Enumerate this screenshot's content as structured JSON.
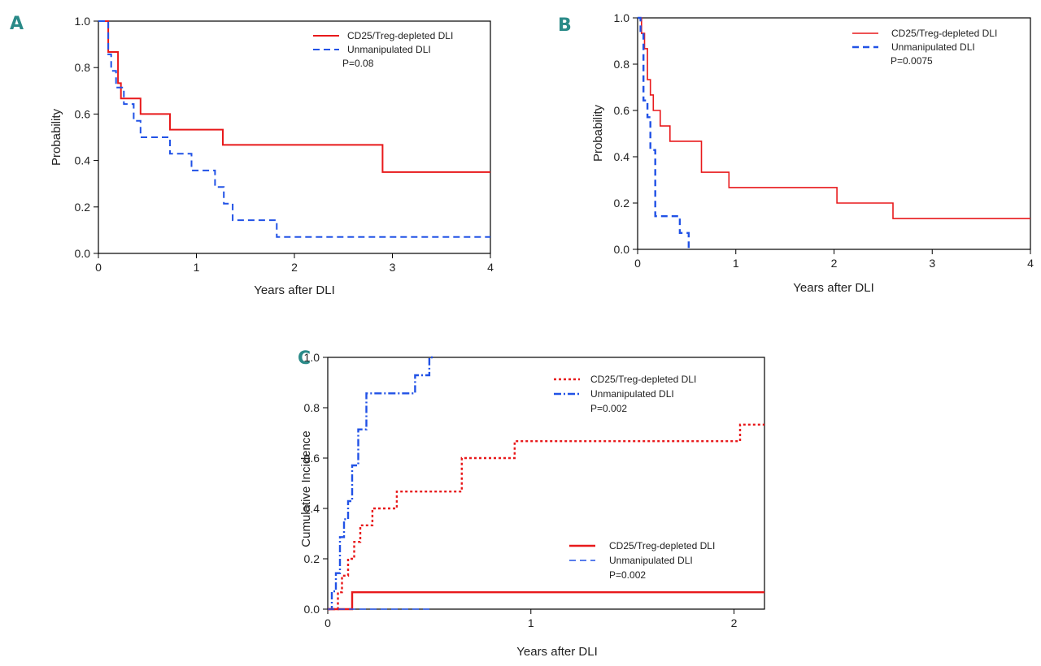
{
  "chart_data": [
    {
      "panel": "A",
      "type": "line",
      "title": "",
      "xlabel": "Years after DLI",
      "ylabel": "Probability",
      "xlim": [
        0,
        4
      ],
      "ylim": [
        0,
        1
      ],
      "xticks": [
        "0",
        "1",
        "2",
        "3",
        "4"
      ],
      "yticks": [
        "0.0",
        "0.2",
        "0.4",
        "0.6",
        "0.8",
        "1.0"
      ],
      "legend_position": "top-right",
      "p_value": "P=0.08",
      "series": [
        {
          "name": "CD25/Treg-depleted DLI",
          "color": "#e8191b",
          "style": "solid",
          "width": 2,
          "x": [
            0,
            0.1,
            0.2,
            0.23,
            0.43,
            0.73,
            1.27,
            2.9,
            4.0
          ],
          "y": [
            1.0,
            0.867,
            0.733,
            0.667,
            0.6,
            0.533,
            0.467,
            0.35,
            0.35
          ]
        },
        {
          "name": "Unmanipulated DLI",
          "color": "#2152e6",
          "style": "dashed",
          "width": 2,
          "x": [
            0,
            0.1,
            0.13,
            0.18,
            0.26,
            0.36,
            0.43,
            0.73,
            0.95,
            1.19,
            1.28,
            1.37,
            1.82,
            4.0
          ],
          "y": [
            1.0,
            0.857,
            0.786,
            0.714,
            0.643,
            0.571,
            0.5,
            0.429,
            0.357,
            0.286,
            0.214,
            0.143,
            0.071,
            0.071
          ]
        }
      ]
    },
    {
      "panel": "B",
      "type": "line",
      "title": "",
      "xlabel": "Years after DLI",
      "ylabel": "Probability",
      "xlim": [
        0,
        4
      ],
      "ylim": [
        0,
        1
      ],
      "xticks": [
        "0",
        "1",
        "2",
        "3",
        "4"
      ],
      "yticks": [
        "0.0",
        "0.2",
        "0.4",
        "0.6",
        "0.8",
        "1.0"
      ],
      "legend_position": "top-right",
      "p_value": "P=0.0075",
      "series": [
        {
          "name": "CD25/Treg-depleted DLI",
          "color": "#e8191b",
          "style": "solid",
          "width": 1.6,
          "x": [
            0,
            0.04,
            0.07,
            0.1,
            0.13,
            0.16,
            0.23,
            0.33,
            0.65,
            0.93,
            2.03,
            2.6,
            4.0
          ],
          "y": [
            1.0,
            0.933,
            0.867,
            0.733,
            0.667,
            0.6,
            0.533,
            0.467,
            0.333,
            0.267,
            0.2,
            0.133,
            0.133
          ]
        },
        {
          "name": "Unmanipulated DLI",
          "color": "#2152e6",
          "style": "dashed",
          "width": 2.4,
          "x": [
            0,
            0.03,
            0.06,
            0.1,
            0.13,
            0.18,
            0.43,
            0.52
          ],
          "y": [
            1.0,
            0.929,
            0.643,
            0.571,
            0.429,
            0.143,
            0.071,
            0.0
          ]
        }
      ]
    },
    {
      "panel": "C",
      "type": "line",
      "title": "",
      "xlabel": "Years after DLI",
      "ylabel": "Cumulative Incidence",
      "xlim": [
        0,
        2.15
      ],
      "ylim": [
        0,
        1
      ],
      "xticks": [
        "0",
        "1",
        "2"
      ],
      "yticks": [
        "0.0",
        "0.2",
        "0.4",
        "0.6",
        "0.8",
        "1.0"
      ],
      "legends": [
        {
          "position": "top-center",
          "entries": [
            "CD25/Treg-depleted DLI",
            "Unmanipulated DLI"
          ],
          "styles": [
            "dotted",
            "dashdot"
          ],
          "p_value": "P=0.002"
        },
        {
          "position": "bottom-right",
          "entries": [
            "CD25/Treg-depleted DLI",
            "Unmanipulated DLI"
          ],
          "styles": [
            "solid",
            "dashed"
          ],
          "p_value": "P=0.002"
        }
      ],
      "series": [
        {
          "name": "CD25/Treg-depleted DLI",
          "color": "#e8191b",
          "style": "dotted",
          "width": 2.4,
          "x": [
            0,
            0.05,
            0.07,
            0.1,
            0.13,
            0.16,
            0.22,
            0.34,
            0.66,
            0.92,
            2.03,
            2.15
          ],
          "y": [
            0,
            0.067,
            0.133,
            0.2,
            0.267,
            0.333,
            0.4,
            0.467,
            0.6,
            0.667,
            0.733,
            0.733
          ]
        },
        {
          "name": "Unmanipulated DLI",
          "color": "#2152e6",
          "style": "dashdot",
          "width": 2.4,
          "x": [
            0,
            0.02,
            0.04,
            0.06,
            0.08,
            0.1,
            0.12,
            0.15,
            0.19,
            0.43,
            0.5,
            0.52
          ],
          "y": [
            0,
            0.071,
            0.143,
            0.286,
            0.357,
            0.429,
            0.571,
            0.714,
            0.857,
            0.929,
            1.0,
            1.0
          ]
        },
        {
          "name": "CD25/Treg-depleted DLI",
          "color": "#e8191b",
          "style": "solid",
          "width": 2.4,
          "x": [
            0,
            0.12,
            2.15
          ],
          "y": [
            0,
            0.067,
            0.067
          ]
        },
        {
          "name": "Unmanipulated DLI",
          "color": "#2152e6",
          "style": "dashed",
          "width": 1.6,
          "x": [
            0,
            0.52
          ],
          "y": [
            0,
            0
          ]
        }
      ]
    }
  ],
  "panel_labels": {
    "a": "A",
    "b": "B",
    "c": "C"
  },
  "colors": {
    "red": "#e8191b",
    "blue": "#2152e6",
    "letter": "#2a8a88"
  }
}
